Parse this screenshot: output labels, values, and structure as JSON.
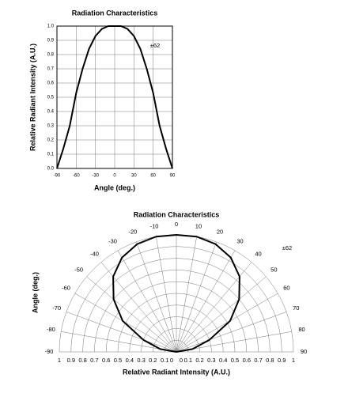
{
  "chart_data": [
    {
      "type": "line",
      "title": "Radiation Characteristics",
      "x_label": "Angle (deg.)",
      "y_label": "Relative Radiant Intensity (A.U.)",
      "annotation": "±62",
      "x": [
        -90,
        -80,
        -70,
        -60,
        -50,
        -40,
        -30,
        -20,
        -10,
        0,
        10,
        20,
        30,
        40,
        50,
        60,
        70,
        80,
        90
      ],
      "values": [
        0,
        0.14,
        0.3,
        0.53,
        0.7,
        0.84,
        0.93,
        0.98,
        1.0,
        1.0,
        1.0,
        0.98,
        0.93,
        0.84,
        0.7,
        0.53,
        0.3,
        0.14,
        0
      ],
      "color": "#000000",
      "xlim": [
        -90,
        90
      ],
      "xticks": [
        -90,
        -60,
        -30,
        0,
        30,
        60,
        90
      ],
      "ylim": [
        0,
        1
      ],
      "yticks": [
        {
          "value": 0,
          "label": "0.0"
        },
        0.1,
        0.2,
        0.3,
        0.4,
        0.5,
        0.6,
        0.7,
        0.8,
        0.9,
        {
          "value": 1,
          "label": "1.0"
        }
      ],
      "grid": true
    },
    {
      "type": "polar",
      "title": "Radiation Characteristics",
      "x_label": "Relative Radiant Intensity (A.U.)",
      "y_label": "Angle (deg.)",
      "annotation": "±62",
      "x": [
        -90,
        -80,
        -70,
        -60,
        -50,
        -40,
        -30,
        -20,
        -10,
        0,
        10,
        20,
        30,
        40,
        50,
        60,
        70,
        80,
        90
      ],
      "values": [
        0,
        0.14,
        0.3,
        0.53,
        0.7,
        0.84,
        0.93,
        0.98,
        1.0,
        1.0,
        1.0,
        0.98,
        0.93,
        0.84,
        0.7,
        0.53,
        0.3,
        0.14,
        0
      ],
      "color": "#000000",
      "xlim": [
        -90,
        90
      ],
      "xticks": [
        -90,
        -80,
        -70,
        -60,
        -50,
        -40,
        -30,
        -20,
        -10,
        0,
        10,
        20,
        30,
        40,
        50,
        60,
        70,
        80,
        90
      ],
      "rlim": [
        0,
        1
      ],
      "rticks": [
        0,
        0.1,
        0.2,
        0.3,
        0.4,
        0.5,
        0.6,
        0.7,
        0.8,
        0.9,
        1
      ],
      "grid": true
    }
  ]
}
